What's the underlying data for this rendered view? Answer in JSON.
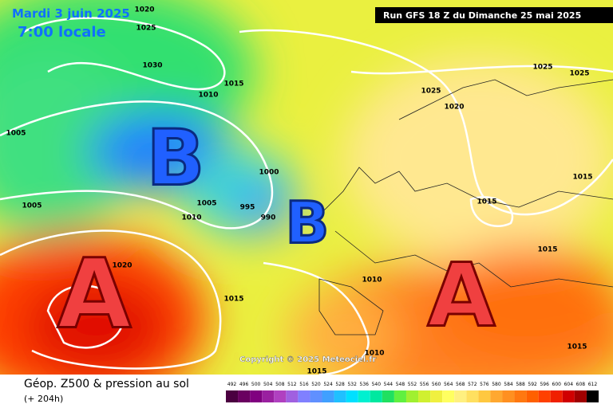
{
  "header": {
    "valid_date": "Mardi 3 juin 2025",
    "local_time": "7:00 locale",
    "run": "Run GFS 18 Z du Dimanche 25 mai 2025"
  },
  "pressure_centers": [
    "B",
    "B",
    "A",
    "A"
  ],
  "isobar_labels": [
    "1020",
    "1025",
    "1030",
    "1015",
    "1010",
    "1005",
    "1005",
    "1000",
    "995",
    "990",
    "1005",
    "1010",
    "1020",
    "1015",
    "1010",
    "1010",
    "1015",
    "1025",
    "1020",
    "1025",
    "1025",
    "1015",
    "1015",
    "1015",
    "1015"
  ],
  "copyright": "Copyright © 2025 Meteociel.fr",
  "legend": {
    "title": "Géop. Z500 & pression au sol",
    "lead": "(+ 204h)",
    "scale": [
      {
        "value": 492,
        "color": "#4b0040"
      },
      {
        "value": 496,
        "color": "#6a0060"
      },
      {
        "value": 500,
        "color": "#800080"
      },
      {
        "value": 504,
        "color": "#9a20a0"
      },
      {
        "value": 508,
        "color": "#b040c0"
      },
      {
        "value": 512,
        "color": "#a060e0"
      },
      {
        "value": 516,
        "color": "#8080ff"
      },
      {
        "value": 520,
        "color": "#6090ff"
      },
      {
        "value": 524,
        "color": "#40a0ff"
      },
      {
        "value": 528,
        "color": "#20c0ff"
      },
      {
        "value": 532,
        "color": "#00e0ff"
      },
      {
        "value": 536,
        "color": "#00f0d0"
      },
      {
        "value": 540,
        "color": "#00e8a0"
      },
      {
        "value": 544,
        "color": "#20e060"
      },
      {
        "value": 548,
        "color": "#60f040"
      },
      {
        "value": 552,
        "color": "#a0f030"
      },
      {
        "value": 556,
        "color": "#d0f030"
      },
      {
        "value": 560,
        "color": "#f0f040"
      },
      {
        "value": 564,
        "color": "#ffff60"
      },
      {
        "value": 568,
        "color": "#fff080"
      },
      {
        "value": 572,
        "color": "#ffe060"
      },
      {
        "value": 576,
        "color": "#ffc840"
      },
      {
        "value": 580,
        "color": "#ffa830"
      },
      {
        "value": 584,
        "color": "#ff9020"
      },
      {
        "value": 588,
        "color": "#ff7810"
      },
      {
        "value": 592,
        "color": "#ff6000"
      },
      {
        "value": 596,
        "color": "#ff4000"
      },
      {
        "value": 600,
        "color": "#f02000"
      },
      {
        "value": 604,
        "color": "#d00000"
      },
      {
        "value": 608,
        "color": "#a00000"
      },
      {
        "value": 612,
        "color": "#000000"
      }
    ]
  }
}
